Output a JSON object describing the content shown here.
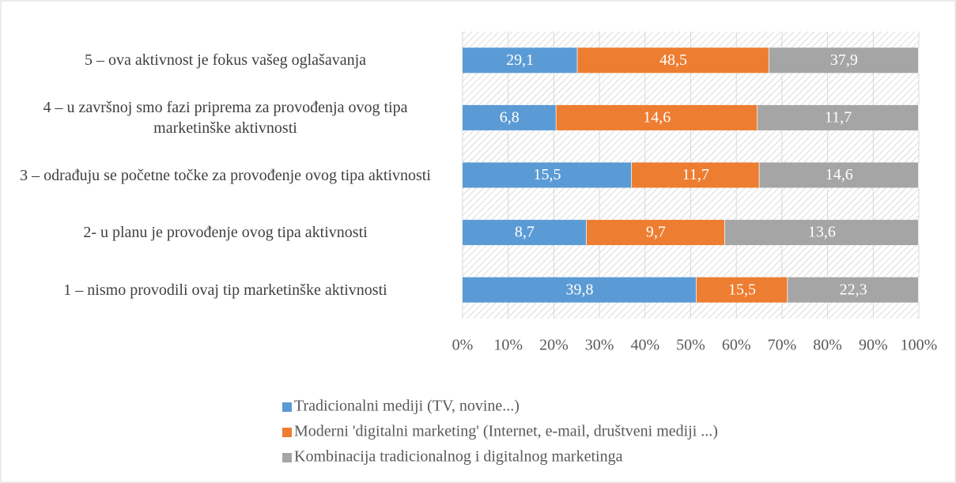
{
  "chart_data": {
    "type": "bar",
    "orientation": "horizontal",
    "stacked_percent": true,
    "categories": [
      "5 – ova aktivnost je fokus vašeg oglašavanja",
      "4 – u završnoj smo fazi priprema za provođenja ovog tipa marketinške aktivnosti",
      "3 – odrađuju se početne točke za provođenje ovog tipa aktivnosti",
      "2- u planu je provođenje ovog tipa aktivnosti",
      "1 – nismo provodili ovaj tip marketinške aktivnosti"
    ],
    "series": [
      {
        "name": "Tradicionalni mediji (TV, novine...)",
        "color": "#5b9bd5",
        "values": [
          29.1,
          6.8,
          15.5,
          8.7,
          39.8
        ],
        "value_labels": [
          "29,1",
          "6,8",
          "15,5",
          "8,7",
          "39,8"
        ]
      },
      {
        "name": "Moderni 'digitalni marketing' (Internet, e-mail, društveni mediji ...)",
        "color": "#ed7d31",
        "values": [
          48.5,
          14.6,
          11.7,
          9.7,
          15.5
        ],
        "value_labels": [
          "48,5",
          "14,6",
          "11,7",
          "9,7",
          "15,5"
        ]
      },
      {
        "name": "Kombinacija tradicionalnog i digitalnog marketinga",
        "color": "#a5a5a5",
        "values": [
          37.9,
          11.7,
          14.6,
          13.6,
          22.3
        ],
        "value_labels": [
          "37,9",
          "11,7",
          "14,6",
          "13,6",
          "22,3"
        ]
      }
    ],
    "xlim": [
      0,
      100
    ],
    "xticks": [
      {
        "value": 0,
        "label": "0%"
      },
      {
        "value": 10,
        "label": "10%"
      },
      {
        "value": 20,
        "label": "20%"
      },
      {
        "value": 30,
        "label": "30%"
      },
      {
        "value": 40,
        "label": "40%"
      },
      {
        "value": 50,
        "label": "50%"
      },
      {
        "value": 60,
        "label": "60%"
      },
      {
        "value": 70,
        "label": "70%"
      },
      {
        "value": 80,
        "label": "80%"
      },
      {
        "value": 90,
        "label": "90%"
      },
      {
        "value": 100,
        "label": "100%"
      }
    ],
    "grid": true,
    "legend": "bottom"
  }
}
